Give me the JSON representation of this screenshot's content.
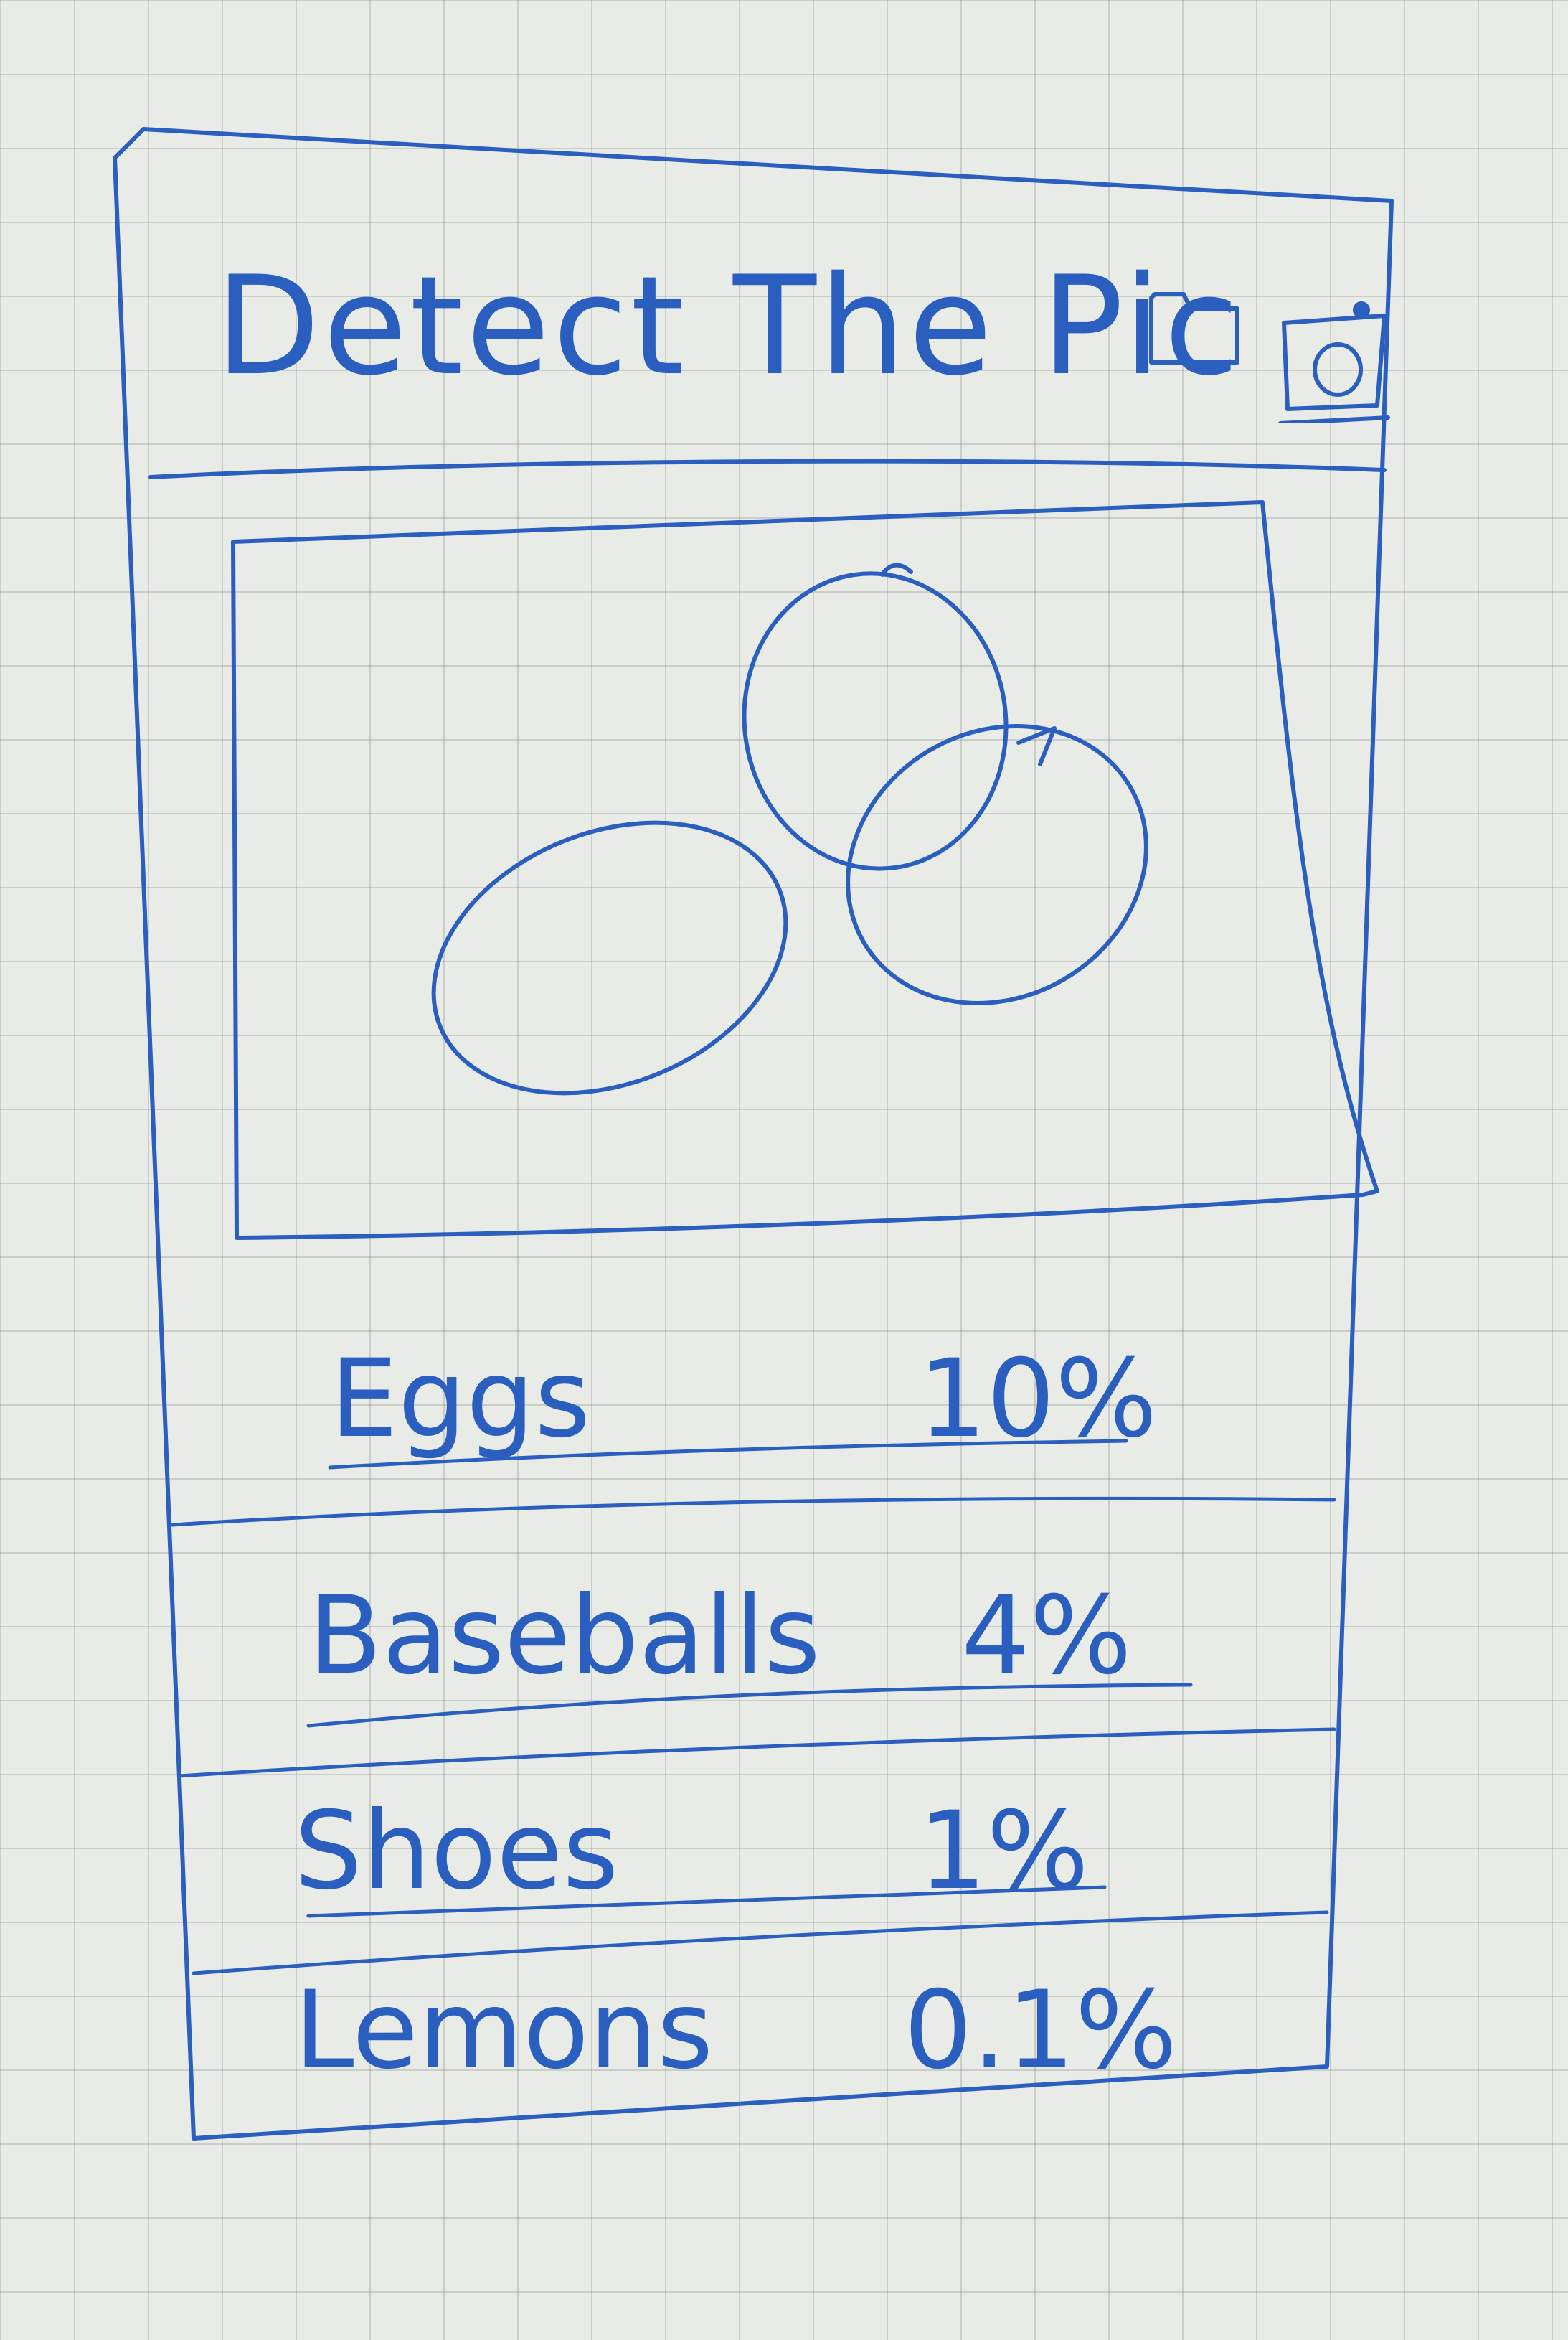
{
  "app": {
    "title": "Detect The Pic"
  },
  "header": {
    "actions": [
      {
        "icon": "folder-icon",
        "label": ""
      },
      {
        "icon": "camera-icon",
        "label": ""
      }
    ]
  },
  "preview": {
    "content": "eggs sketch"
  },
  "results": [
    {
      "label": "Eggs",
      "percent": "10%"
    },
    {
      "label": "Baseballs",
      "percent": "4%"
    },
    {
      "label": "Shoes",
      "percent": "1%"
    },
    {
      "label": "Lemons",
      "percent": "0.1%"
    }
  ],
  "colors": {
    "ink": "#2a5fbf",
    "paper": "#e9ebe7",
    "grid": "#9aa29a"
  }
}
